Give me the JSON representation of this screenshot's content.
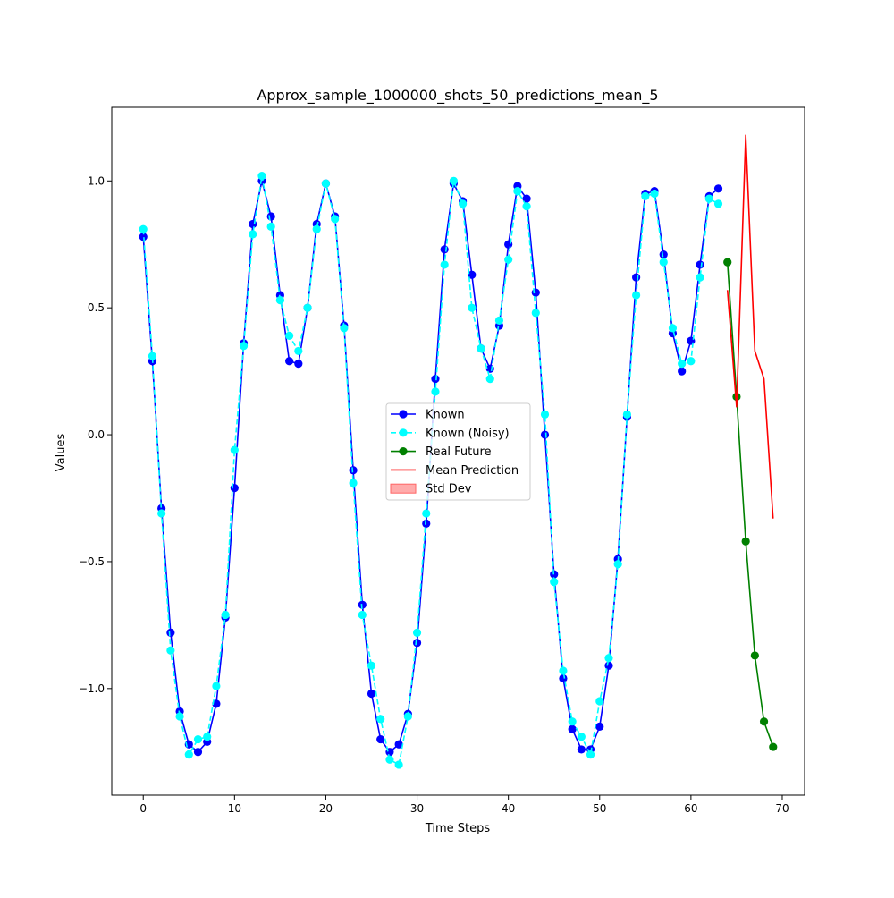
{
  "chart_data": {
    "type": "line",
    "title": "Approx_sample_1000000_shots_50_predictions_mean_5",
    "xlabel": "Time Steps",
    "ylabel": "Values",
    "xlim": [
      -3.45,
      72.45
    ],
    "ylim": [
      -1.42,
      1.29
    ],
    "xticks": [
      0,
      10,
      20,
      30,
      40,
      50,
      60,
      70
    ],
    "xtick_labels": [
      "0",
      "10",
      "20",
      "30",
      "40",
      "50",
      "60",
      "70"
    ],
    "yticks": [
      -1.0,
      -0.5,
      0.0,
      0.5,
      1.0
    ],
    "ytick_labels": [
      "−1.0",
      "−0.5",
      "0.0",
      "0.5",
      "1.0"
    ],
    "grid": false,
    "legend_position": "center",
    "series": [
      {
        "name": "Known",
        "color": "#0000ff",
        "style": "solid",
        "marker": "circle",
        "x": [
          0,
          1,
          2,
          3,
          4,
          5,
          6,
          7,
          8,
          9,
          10,
          11,
          12,
          13,
          14,
          15,
          16,
          17,
          18,
          19,
          20,
          21,
          22,
          23,
          24,
          25,
          26,
          27,
          28,
          29,
          30,
          31,
          32,
          33,
          34,
          35,
          36,
          37,
          38,
          39,
          40,
          41,
          42,
          43,
          44,
          45,
          46,
          47,
          48,
          49,
          50,
          51,
          52,
          53,
          54,
          55,
          56,
          57,
          58,
          59,
          60,
          61,
          62,
          63
        ],
        "y": [
          0.78,
          0.29,
          -0.29,
          -0.78,
          -1.09,
          -1.22,
          -1.25,
          -1.21,
          -1.06,
          -0.72,
          -0.21,
          0.36,
          0.83,
          1.0,
          0.86,
          0.55,
          0.29,
          0.28,
          0.5,
          0.83,
          0.99,
          0.86,
          0.43,
          -0.14,
          -0.67,
          -1.02,
          -1.2,
          -1.25,
          -1.22,
          -1.1,
          -0.82,
          -0.35,
          0.22,
          0.73,
          0.99,
          0.92,
          0.63,
          0.34,
          0.26,
          0.43,
          0.75,
          0.98,
          0.93,
          0.56,
          0.0,
          -0.55,
          -0.96,
          -1.16,
          -1.24,
          -1.24,
          -1.15,
          -0.91,
          -0.49,
          0.07,
          0.62,
          0.95,
          0.96,
          0.71,
          0.4,
          0.25,
          0.37,
          0.67,
          0.94,
          0.97
        ]
      },
      {
        "name": "Known (Noisy)",
        "color": "#00ffff",
        "style": "dashed",
        "marker": "circle",
        "x": [
          0,
          1,
          2,
          3,
          4,
          5,
          6,
          7,
          8,
          9,
          10,
          11,
          12,
          13,
          14,
          15,
          16,
          17,
          18,
          19,
          20,
          21,
          22,
          23,
          24,
          25,
          26,
          27,
          28,
          29,
          30,
          31,
          32,
          33,
          34,
          35,
          36,
          37,
          38,
          39,
          40,
          41,
          42,
          43,
          44,
          45,
          46,
          47,
          48,
          49,
          50,
          51,
          52,
          53,
          54,
          55,
          56,
          57,
          58,
          59,
          60,
          61,
          62,
          63
        ],
        "y": [
          0.81,
          0.31,
          -0.31,
          -0.85,
          -1.11,
          -1.26,
          -1.2,
          -1.19,
          -0.99,
          -0.71,
          -0.06,
          0.35,
          0.79,
          1.02,
          0.82,
          0.53,
          0.39,
          0.33,
          0.5,
          0.81,
          0.99,
          0.85,
          0.42,
          -0.19,
          -0.71,
          -0.91,
          -1.12,
          -1.28,
          -1.3,
          -1.11,
          -0.78,
          -0.31,
          0.17,
          0.67,
          1.0,
          0.91,
          0.5,
          0.34,
          0.22,
          0.45,
          0.69,
          0.96,
          0.9,
          0.48,
          0.08,
          -0.58,
          -0.93,
          -1.13,
          -1.19,
          -1.26,
          -1.05,
          -0.88,
          -0.51,
          0.08,
          0.55,
          0.94,
          0.95,
          0.68,
          0.42,
          0.28,
          0.29,
          0.62,
          0.93,
          0.91
        ]
      },
      {
        "name": "Real Future",
        "color": "#008000",
        "style": "solid",
        "marker": "circle",
        "x": [
          64,
          65,
          66,
          67,
          68,
          69
        ],
        "y": [
          0.68,
          0.15,
          -0.42,
          -0.87,
          -1.13,
          -1.23
        ]
      },
      {
        "name": "Mean Prediction",
        "color": "#ff0000",
        "style": "solid",
        "marker": "none",
        "x": [
          64,
          65,
          66,
          67,
          68,
          69
        ],
        "y": [
          0.57,
          0.11,
          1.18,
          0.33,
          0.22,
          -0.33
        ]
      },
      {
        "name": "Std Dev",
        "color": "#ff6666",
        "style": "fill",
        "marker": "none",
        "x": [],
        "y": []
      }
    ]
  }
}
